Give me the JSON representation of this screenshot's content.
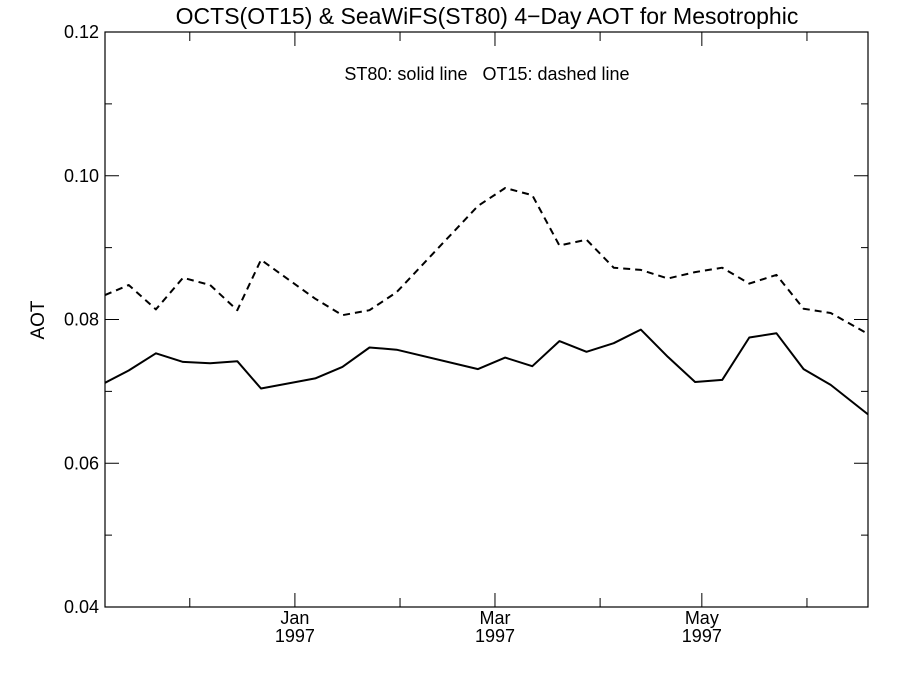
{
  "chart_data": {
    "type": "line",
    "title": "OCTS(OT15) & SeaWiFS(ST80) 4−Day AOT for Mesotrophic",
    "annotation": "ST80: solid line   OT15: dashed line",
    "xlabel": "",
    "ylabel": "AOT",
    "ylim": [
      0.04,
      0.12
    ],
    "y_ticks": [
      "0.04",
      "0.06",
      "0.08",
      "0.10",
      "0.12"
    ],
    "x_ticks": [
      {
        "month": "Jan",
        "year": "1997",
        "date": "1997-01-01"
      },
      {
        "month": "Mar",
        "year": "1997",
        "date": "1997-03-01"
      },
      {
        "month": "May",
        "year": "1997",
        "date": "1997-05-01"
      }
    ],
    "xlim": [
      "1996-11-06",
      "1997-06-19"
    ],
    "grid": false,
    "legend": "none",
    "series": [
      {
        "style": "solid",
        "x": [
          "1996-11-06",
          "1996-11-13",
          "1996-11-21",
          "1996-11-29",
          "1996-12-07",
          "1996-12-15",
          "1996-12-22",
          "1997-01-07",
          "1997-01-15",
          "1997-01-23",
          "1997-01-31",
          "1997-02-24",
          "1997-03-04",
          "1997-03-12",
          "1997-03-20",
          "1997-03-28",
          "1997-04-05",
          "1997-04-13",
          "1997-04-21",
          "1997-04-29",
          "1997-05-07",
          "1997-05-15",
          "1997-05-23",
          "1997-05-31",
          "1997-06-08",
          "1997-06-19"
        ],
        "y": [
          0.0712,
          0.0729,
          0.0753,
          0.0741,
          0.0739,
          0.0742,
          0.0704,
          0.0718,
          0.0734,
          0.0761,
          0.0758,
          0.0731,
          0.0747,
          0.0735,
          0.077,
          0.0755,
          0.0767,
          0.0786,
          0.0748,
          0.0713,
          0.0716,
          0.0775,
          0.0781,
          0.0731,
          0.0709,
          0.0668
        ]
      },
      {
        "style": "dashed",
        "x": [
          "1996-11-06",
          "1996-11-13",
          "1996-11-21",
          "1996-11-29",
          "1996-12-07",
          "1996-12-15",
          "1996-12-22",
          "1997-01-07",
          "1997-01-15",
          "1997-01-23",
          "1997-01-31",
          "1997-02-24",
          "1997-03-04",
          "1997-03-12",
          "1997-03-20",
          "1997-03-28",
          "1997-04-05",
          "1997-04-13",
          "1997-04-21",
          "1997-04-29",
          "1997-05-07",
          "1997-05-15",
          "1997-05-23",
          "1997-05-31",
          "1997-06-08",
          "1997-06-19"
        ],
        "y": [
          0.0834,
          0.0848,
          0.0814,
          0.0858,
          0.0848,
          0.0813,
          0.0883,
          0.0829,
          0.0806,
          0.0813,
          0.0838,
          0.0958,
          0.0983,
          0.0973,
          0.0903,
          0.0911,
          0.0872,
          0.0869,
          0.0857,
          0.0866,
          0.0872,
          0.085,
          0.0862,
          0.0815,
          0.0809,
          0.078
        ]
      }
    ]
  }
}
